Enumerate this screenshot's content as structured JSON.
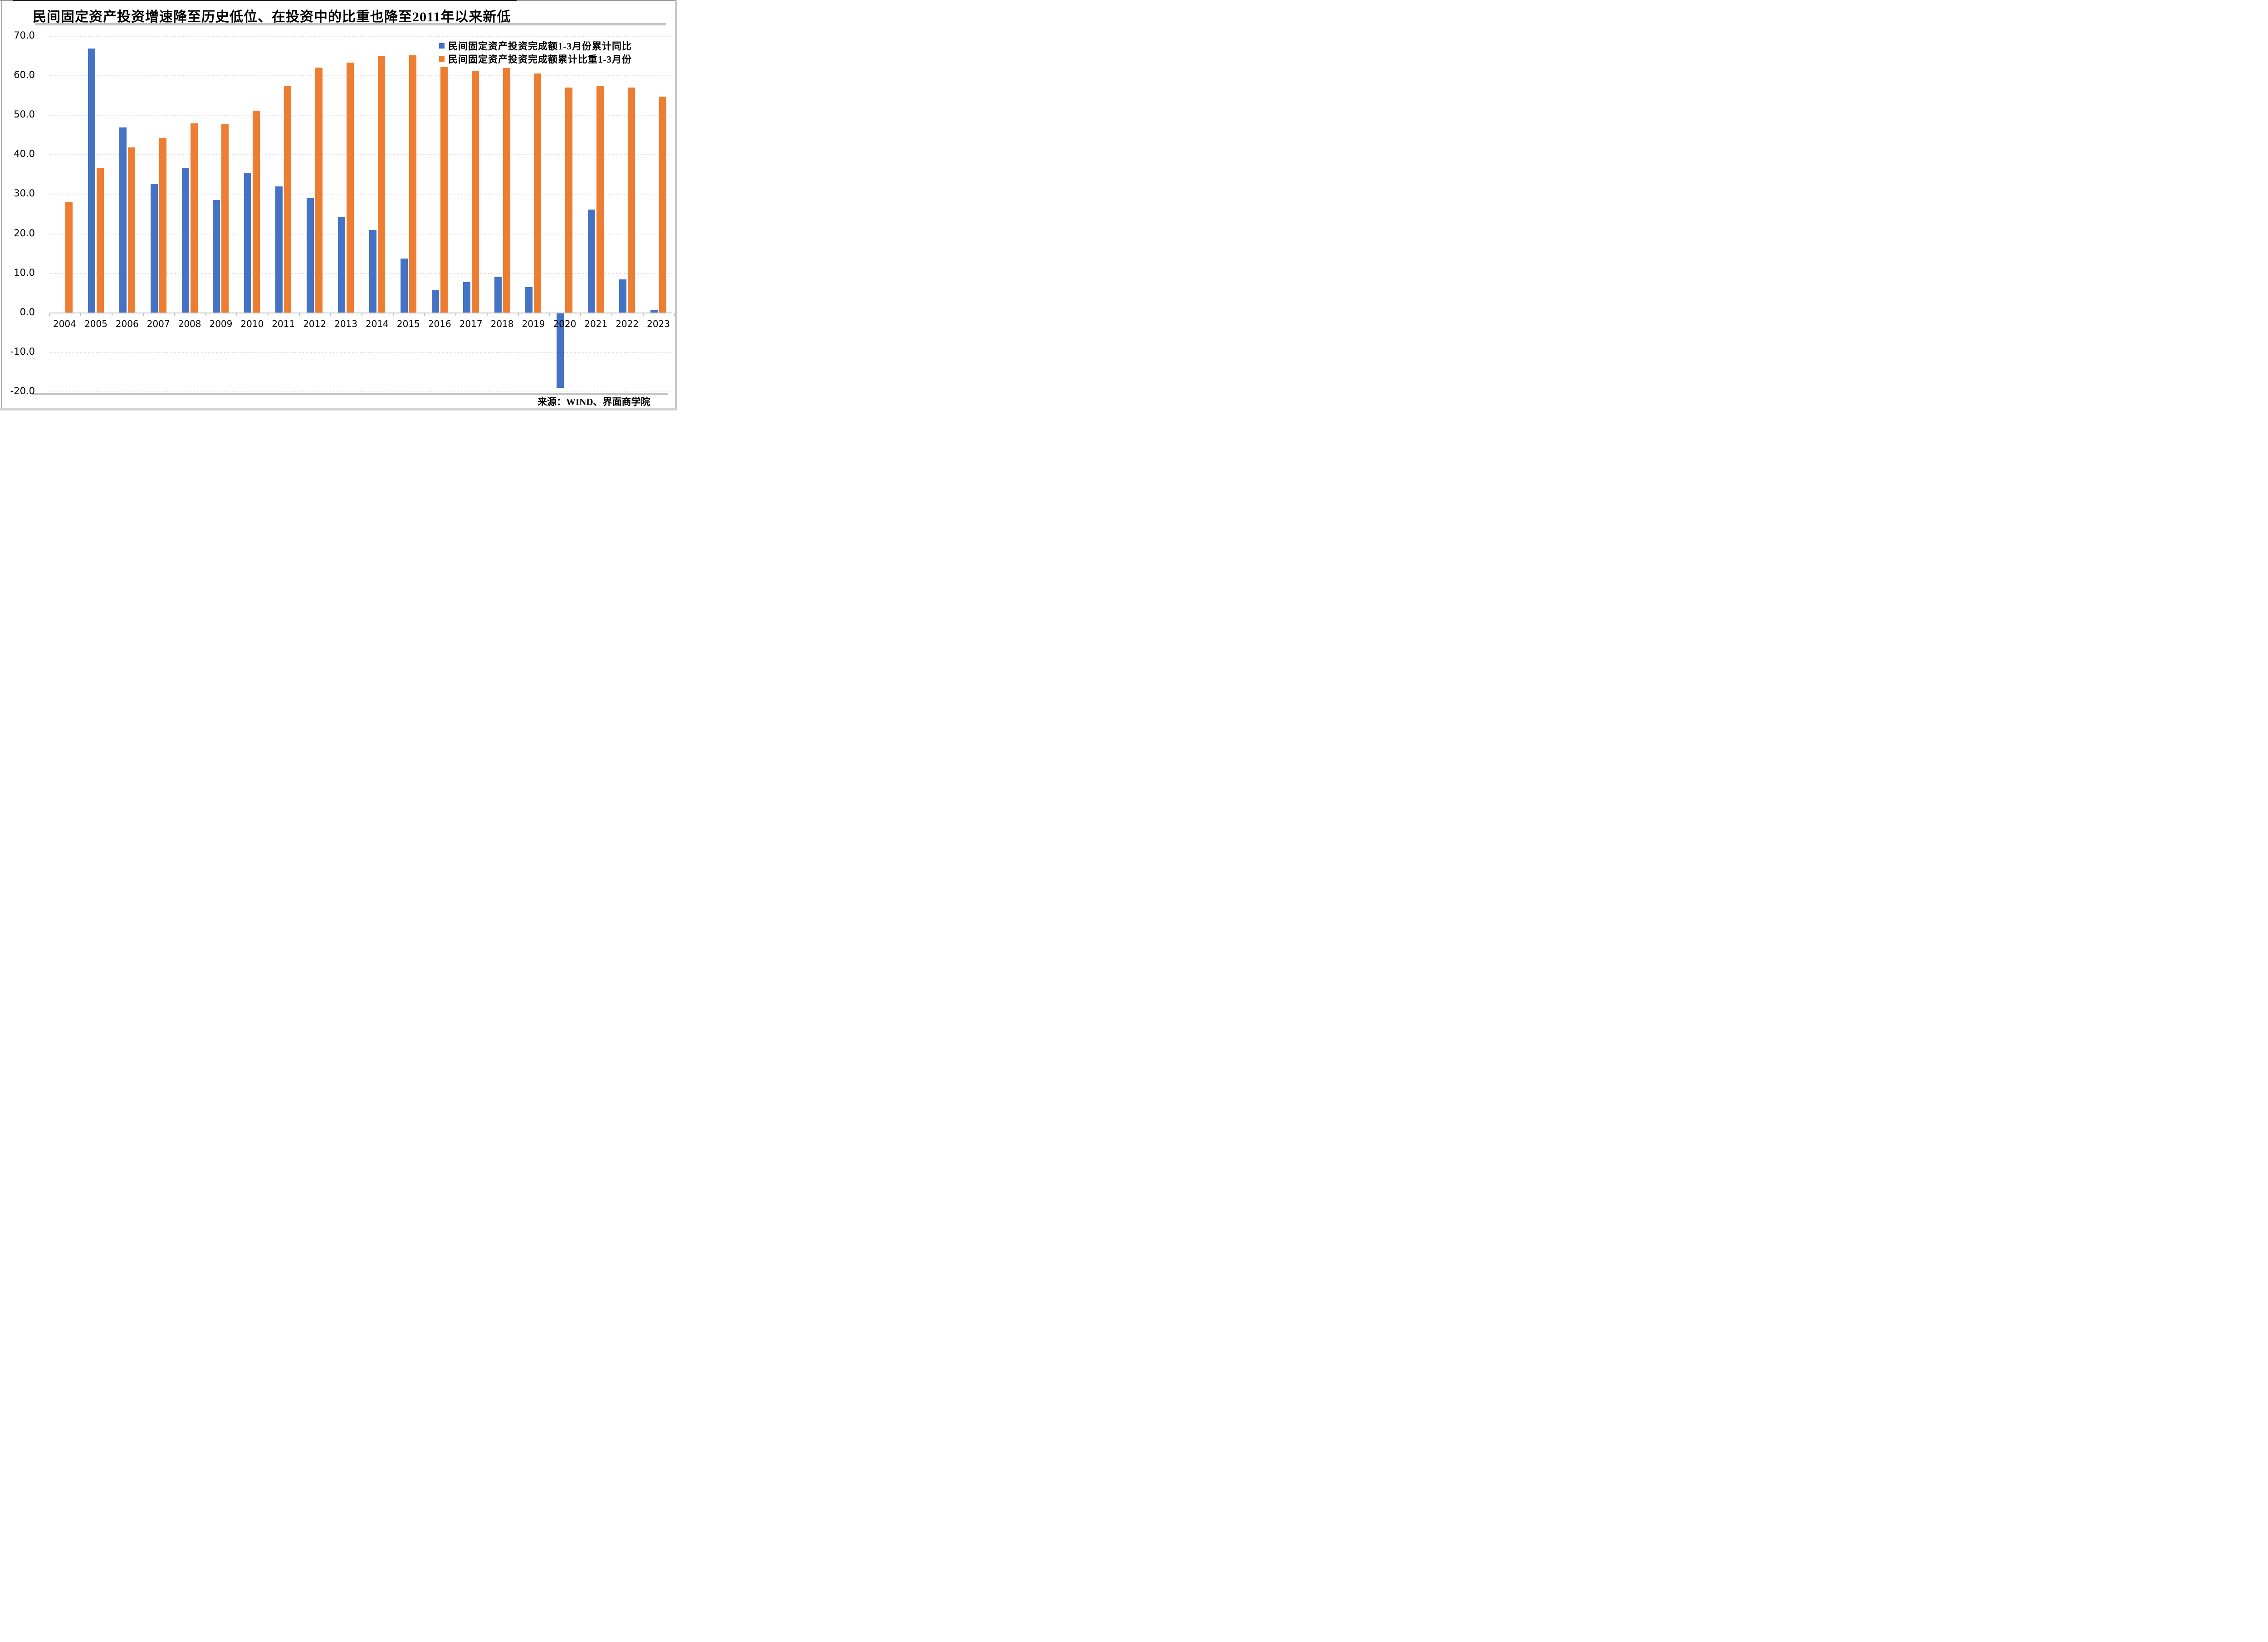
{
  "chart_data": {
    "type": "bar",
    "title": "民间固定资产投资增速降至历史低位、在投资中的比重也降至2011年以来新低",
    "categories": [
      "2004",
      "2005",
      "2006",
      "2007",
      "2008",
      "2009",
      "2010",
      "2011",
      "2012",
      "2013",
      "2014",
      "2015",
      "2016",
      "2017",
      "2018",
      "2019",
      "2020",
      "2021",
      "2022",
      "2023"
    ],
    "series": [
      {
        "name": "民间固定资产投资完成额1-3月份累计同比",
        "color": "#4472C4",
        "values": [
          null,
          66.8,
          46.8,
          32.6,
          36.6,
          28.4,
          35.2,
          31.9,
          29.0,
          24.1,
          20.9,
          13.7,
          5.7,
          7.7,
          8.9,
          6.4,
          -18.8,
          26.0,
          8.4,
          0.6
        ]
      },
      {
        "name": "民间固定资产投资完成额累计比重1-3月份",
        "color": "#ED7D31",
        "values": [
          28.0,
          36.5,
          41.7,
          44.1,
          47.8,
          47.7,
          51.0,
          57.3,
          61.9,
          63.2,
          64.8,
          65.0,
          62.0,
          61.1,
          61.8,
          60.4,
          56.9,
          57.3,
          56.9,
          54.6
        ]
      }
    ],
    "ylim": [
      -20,
      70
    ],
    "ytick_step": 10,
    "ytick_labels": [
      "70.0",
      "60.0",
      "50.0",
      "40.0",
      "30.0",
      "20.0",
      "10.0",
      "0.0",
      "-10.0",
      "-20.0"
    ],
    "grid": "horizontal-dotted",
    "legend_position": "top-right",
    "xlabel": "",
    "ylabel": ""
  },
  "footer": {
    "source": "来源：WIND、界面商学院"
  }
}
